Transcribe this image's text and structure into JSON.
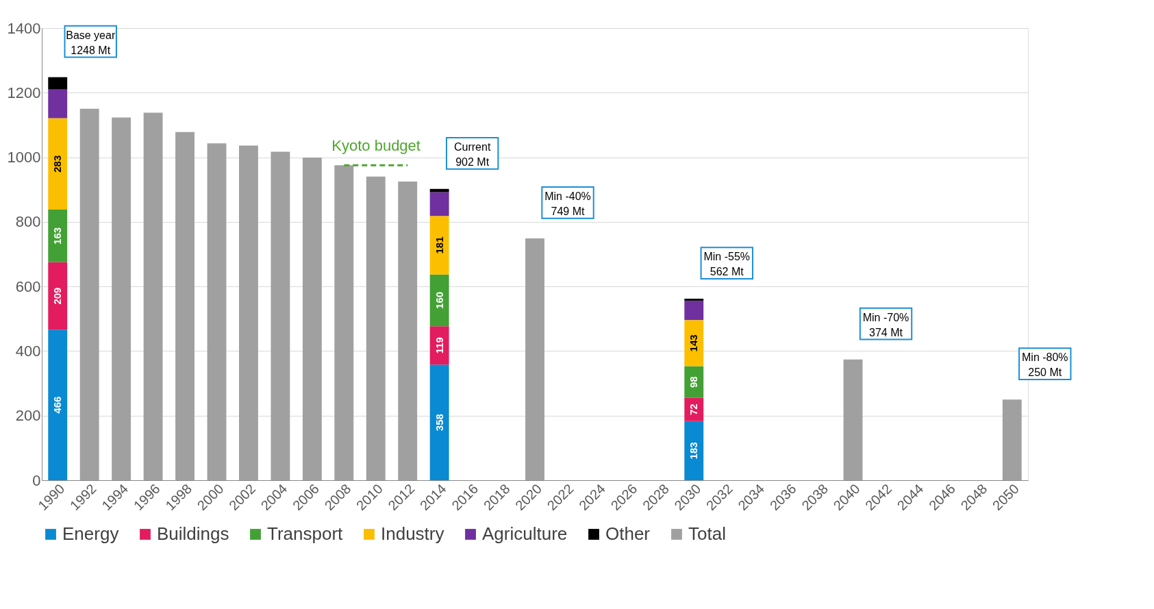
{
  "chart_data": {
    "type": "bar",
    "stacked": true,
    "ylim": [
      0,
      1400
    ],
    "yticks": [
      0,
      200,
      400,
      600,
      800,
      1000,
      1200,
      1400
    ],
    "grid": "y",
    "legend": "bottom",
    "categories": [
      "1990",
      "1992",
      "1994",
      "1996",
      "1998",
      "2000",
      "2002",
      "2004",
      "2006",
      "2008",
      "2010",
      "2012",
      "2014",
      "2016",
      "2018",
      "2020",
      "2022",
      "2024",
      "2026",
      "2028",
      "2030",
      "2032",
      "2034",
      "2036",
      "2038",
      "2040",
      "2042",
      "2044",
      "2046",
      "2048",
      "2050"
    ],
    "series": [
      {
        "name": "Energy",
        "color": "#0a8ad2",
        "values": [
          466,
          null,
          null,
          null,
          null,
          null,
          null,
          null,
          null,
          null,
          null,
          null,
          358,
          null,
          null,
          null,
          null,
          null,
          null,
          null,
          183,
          null,
          null,
          null,
          null,
          null,
          null,
          null,
          null,
          null,
          null
        ],
        "value_labels": [
          "466",
          null,
          null,
          null,
          null,
          null,
          null,
          null,
          null,
          null,
          null,
          null,
          "358",
          null,
          null,
          null,
          null,
          null,
          null,
          null,
          "183",
          null,
          null,
          null,
          null,
          null,
          null,
          null,
          null,
          null,
          null
        ]
      },
      {
        "name": "Buildings",
        "color": "#e31c5f",
        "values": [
          209,
          null,
          null,
          null,
          null,
          null,
          null,
          null,
          null,
          null,
          null,
          null,
          119,
          null,
          null,
          null,
          null,
          null,
          null,
          null,
          72,
          null,
          null,
          null,
          null,
          null,
          null,
          null,
          null,
          null,
          null
        ],
        "value_labels": [
          "209",
          null,
          null,
          null,
          null,
          null,
          null,
          null,
          null,
          null,
          null,
          null,
          "119",
          null,
          null,
          null,
          null,
          null,
          null,
          null,
          "72",
          null,
          null,
          null,
          null,
          null,
          null,
          null,
          null,
          null,
          null
        ]
      },
      {
        "name": "Transport",
        "color": "#43a035",
        "values": [
          163,
          null,
          null,
          null,
          null,
          null,
          null,
          null,
          null,
          null,
          null,
          null,
          160,
          null,
          null,
          null,
          null,
          null,
          null,
          null,
          98,
          null,
          null,
          null,
          null,
          null,
          null,
          null,
          null,
          null,
          null
        ],
        "value_labels": [
          "163",
          null,
          null,
          null,
          null,
          null,
          null,
          null,
          null,
          null,
          null,
          null,
          "160",
          null,
          null,
          null,
          null,
          null,
          null,
          null,
          "98",
          null,
          null,
          null,
          null,
          null,
          null,
          null,
          null,
          null,
          null
        ]
      },
      {
        "name": "Industry",
        "color": "#fcbf00",
        "values": [
          283,
          null,
          null,
          null,
          null,
          null,
          null,
          null,
          null,
          null,
          null,
          null,
          181,
          null,
          null,
          null,
          null,
          null,
          null,
          null,
          143,
          null,
          null,
          null,
          null,
          null,
          null,
          null,
          null,
          null,
          null
        ],
        "value_labels": [
          "283",
          null,
          null,
          null,
          null,
          null,
          null,
          null,
          null,
          null,
          null,
          null,
          "181",
          null,
          null,
          null,
          null,
          null,
          null,
          null,
          "143",
          null,
          null,
          null,
          null,
          null,
          null,
          null,
          null,
          null,
          null
        ]
      },
      {
        "name": "Agriculture",
        "color": "#7030a0",
        "values": [
          89,
          null,
          null,
          null,
          null,
          null,
          null,
          null,
          null,
          null,
          null,
          null,
          74,
          null,
          null,
          null,
          null,
          null,
          null,
          null,
          60,
          null,
          null,
          null,
          null,
          null,
          null,
          null,
          null,
          null,
          null
        ]
      },
      {
        "name": "Other",
        "color": "#000000",
        "values": [
          38,
          null,
          null,
          null,
          null,
          null,
          null,
          null,
          null,
          null,
          null,
          null,
          10,
          null,
          null,
          null,
          null,
          null,
          null,
          null,
          6,
          null,
          null,
          null,
          null,
          null,
          null,
          null,
          null,
          null,
          null
        ]
      },
      {
        "name": "Total",
        "color": "#a0a0a0",
        "values": [
          null,
          1150,
          1123,
          1138,
          1078,
          1043,
          1036,
          1017,
          999,
          975,
          940,
          925,
          null,
          null,
          null,
          749,
          null,
          null,
          null,
          null,
          null,
          null,
          null,
          null,
          null,
          374,
          null,
          null,
          null,
          null,
          250
        ]
      },
      {
        "name": "Kyoto budget",
        "type": "line",
        "line_style": "dashed",
        "color": "#4ea72e",
        "values": [
          null,
          null,
          null,
          null,
          null,
          null,
          null,
          null,
          null,
          975,
          975,
          975,
          null,
          null,
          null,
          null,
          null,
          null,
          null,
          null,
          null,
          null,
          null,
          null,
          null,
          null,
          null,
          null,
          null,
          null,
          null
        ]
      }
    ],
    "annotations": [
      {
        "text": "Base year\n1248 Mt",
        "x": "1990",
        "y": 1248
      },
      {
        "text": "Current\n902 Mt",
        "x": "2014",
        "y": 902
      },
      {
        "text": "Min -40%\n749 Mt",
        "x": "2020",
        "y": 749
      },
      {
        "text": "Min -55%\n562 Mt",
        "x": "2030",
        "y": 562
      },
      {
        "text": "Min -70%\n374 Mt",
        "x": "2040",
        "y": 374
      },
      {
        "text": "Min -80%\n250 Mt",
        "x": "2050",
        "y": 250
      }
    ]
  }
}
